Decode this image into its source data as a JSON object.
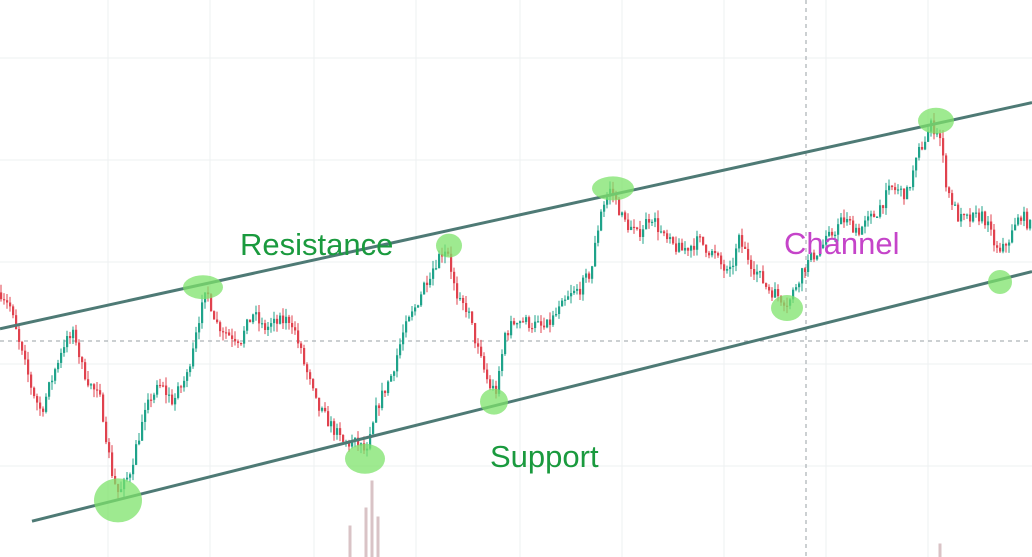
{
  "chart_data": {
    "type": "candlestick",
    "title": "",
    "xlabel": "",
    "ylabel": "",
    "grid": true,
    "colors": {
      "up": "#1fa38a",
      "down": "#e0424e",
      "trendline": "#4e7a75",
      "marker": "#7ee36b",
      "volume": "#d9c3c6"
    },
    "annotations": {
      "resistance": "Resistance",
      "support": "Support",
      "channel": "Channel"
    },
    "channel": {
      "resistance_line": {
        "start_price": 41.0,
        "end_price": 84.5
      },
      "support_line": {
        "start_price": 4.0,
        "end_price": 52.0
      }
    },
    "price_path": [
      [
        0,
        48
      ],
      [
        8,
        46
      ],
      [
        18,
        38
      ],
      [
        30,
        30
      ],
      [
        40,
        25
      ],
      [
        52,
        32
      ],
      [
        62,
        38
      ],
      [
        74,
        40
      ],
      [
        80,
        34
      ],
      [
        90,
        30
      ],
      [
        100,
        27
      ],
      [
        110,
        14
      ],
      [
        118,
        9
      ],
      [
        128,
        13
      ],
      [
        140,
        22
      ],
      [
        150,
        28
      ],
      [
        160,
        30
      ],
      [
        172,
        27
      ],
      [
        186,
        32
      ],
      [
        196,
        42
      ],
      [
        206,
        48
      ],
      [
        216,
        42
      ],
      [
        228,
        40
      ],
      [
        240,
        39
      ],
      [
        252,
        44
      ],
      [
        262,
        41
      ],
      [
        274,
        42
      ],
      [
        290,
        43
      ],
      [
        302,
        35
      ],
      [
        316,
        26
      ],
      [
        328,
        23
      ],
      [
        342,
        19
      ],
      [
        356,
        19
      ],
      [
        366,
        17
      ],
      [
        376,
        26
      ],
      [
        390,
        32
      ],
      [
        402,
        40
      ],
      [
        414,
        45
      ],
      [
        424,
        50
      ],
      [
        438,
        55
      ],
      [
        446,
        57
      ],
      [
        456,
        46
      ],
      [
        466,
        45
      ],
      [
        478,
        36
      ],
      [
        488,
        30
      ],
      [
        496,
        29
      ],
      [
        504,
        40
      ],
      [
        516,
        43
      ],
      [
        530,
        42
      ],
      [
        544,
        41
      ],
      [
        556,
        44
      ],
      [
        568,
        47
      ],
      [
        580,
        49
      ],
      [
        590,
        52
      ],
      [
        600,
        64
      ],
      [
        610,
        68
      ],
      [
        622,
        62
      ],
      [
        636,
        59
      ],
      [
        650,
        63
      ],
      [
        664,
        58
      ],
      [
        680,
        56
      ],
      [
        698,
        58
      ],
      [
        714,
        55
      ],
      [
        728,
        51
      ],
      [
        738,
        58
      ],
      [
        752,
        53
      ],
      [
        766,
        49
      ],
      [
        780,
        47
      ],
      [
        788,
        46
      ],
      [
        800,
        52
      ],
      [
        812,
        55
      ],
      [
        826,
        58
      ],
      [
        842,
        62
      ],
      [
        858,
        60
      ],
      [
        874,
        63
      ],
      [
        890,
        68
      ],
      [
        906,
        67
      ],
      [
        918,
        75
      ],
      [
        930,
        80
      ],
      [
        938,
        79
      ],
      [
        946,
        68
      ],
      [
        958,
        62
      ],
      [
        970,
        62
      ],
      [
        982,
        63
      ],
      [
        998,
        55
      ],
      [
        1010,
        59
      ],
      [
        1020,
        63
      ],
      [
        1032,
        60
      ]
    ],
    "touch_points": [
      {
        "role": "support",
        "x_index": 118,
        "price": 8
      },
      {
        "role": "resistance",
        "x_index": 203,
        "price": 49
      },
      {
        "role": "support",
        "x_index": 365,
        "price": 16
      },
      {
        "role": "resistance",
        "x_index": 449,
        "price": 57
      },
      {
        "role": "support",
        "x_index": 494,
        "price": 27
      },
      {
        "role": "resistance",
        "x_index": 613,
        "price": 68
      },
      {
        "role": "support",
        "x_index": 787,
        "price": 45
      },
      {
        "role": "resistance",
        "x_index": 936,
        "price": 81
      },
      {
        "role": "support",
        "x_index": 1000,
        "price": 50
      }
    ],
    "volume": [
      {
        "x_index": 350,
        "value": 0.35
      },
      {
        "x_index": 366,
        "value": 0.55
      },
      {
        "x_index": 372,
        "value": 0.85
      },
      {
        "x_index": 378,
        "value": 0.45
      },
      {
        "x_index": 940,
        "value": 0.15
      }
    ]
  }
}
